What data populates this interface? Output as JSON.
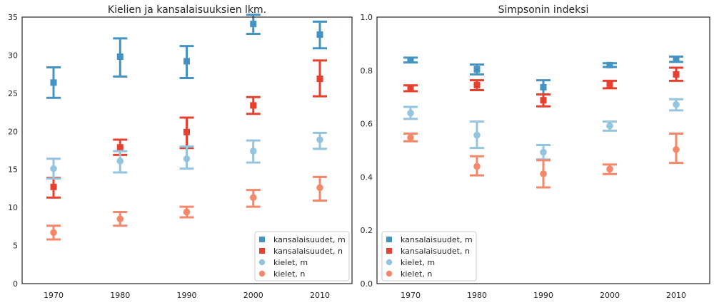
{
  "chart_data": [
    {
      "type": "scatter",
      "title": "Kielien ja kansalaisuuksien lkm.",
      "xlabel": "",
      "ylabel": "",
      "categories": [
        "1970",
        "1980",
        "1990",
        "2000",
        "2010"
      ],
      "ylim": [
        0,
        35
      ],
      "yticks": [
        "0",
        "5",
        "10",
        "15",
        "20",
        "25",
        "30",
        "35"
      ],
      "ytick_values": [
        0,
        5,
        10,
        15,
        20,
        25,
        30,
        35
      ],
      "grid": false,
      "legend_position": "bottom-right",
      "series": [
        {
          "name": "kansalaisuudet, m",
          "marker": "square",
          "color": "#4493c3",
          "values": [
            26.4,
            29.8,
            29.2,
            34.1,
            32.7
          ],
          "lower": [
            24.4,
            27.2,
            27.0,
            32.8,
            30.9
          ],
          "upper": [
            28.4,
            32.2,
            31.2,
            35.3,
            34.4
          ]
        },
        {
          "name": "kansalaisuudet, n",
          "marker": "square",
          "color": "#e8402e",
          "values": [
            12.7,
            17.9,
            19.9,
            23.4,
            26.9
          ],
          "lower": [
            11.3,
            16.9,
            17.8,
            22.3,
            24.6
          ],
          "upper": [
            13.9,
            18.9,
            21.8,
            24.5,
            29.3
          ]
        },
        {
          "name": "kielet, m",
          "marker": "circle",
          "color": "#95c4df",
          "values": [
            15.1,
            16.1,
            16.4,
            17.4,
            18.9
          ],
          "lower": [
            13.8,
            14.6,
            15.1,
            15.9,
            17.7
          ],
          "upper": [
            16.4,
            17.4,
            18.0,
            18.8,
            19.8
          ]
        },
        {
          "name": "kielet, n",
          "marker": "circle",
          "color": "#f5876a",
          "values": [
            6.7,
            8.5,
            9.4,
            11.3,
            12.6
          ],
          "lower": [
            5.8,
            7.6,
            8.7,
            10.1,
            10.9
          ],
          "upper": [
            7.6,
            9.4,
            10.1,
            12.3,
            14.0
          ]
        }
      ]
    },
    {
      "type": "scatter",
      "title": "Simpsonin indeksi",
      "xlabel": "",
      "ylabel": "",
      "categories": [
        "1970",
        "1980",
        "1990",
        "2000",
        "2010"
      ],
      "ylim": [
        0,
        1.0
      ],
      "yticks": [
        "0.0",
        "0.2",
        "0.4",
        "0.6",
        "0.8",
        "1.0"
      ],
      "ytick_values": [
        0,
        0.2,
        0.4,
        0.6,
        0.8,
        1.0
      ],
      "grid": false,
      "legend_position": "bottom-left",
      "series": [
        {
          "name": "kansalaisuudet, m",
          "marker": "square",
          "color": "#4493c3",
          "values": [
            0.838,
            0.804,
            0.737,
            0.82,
            0.842
          ],
          "lower": [
            0.83,
            0.785,
            0.71,
            0.813,
            0.832
          ],
          "upper": [
            0.848,
            0.822,
            0.763,
            0.827,
            0.852
          ]
        },
        {
          "name": "kansalaisuudet, n",
          "marker": "square",
          "color": "#e8402e",
          "values": [
            0.733,
            0.745,
            0.688,
            0.748,
            0.785
          ],
          "lower": [
            0.722,
            0.726,
            0.665,
            0.733,
            0.761
          ],
          "upper": [
            0.744,
            0.763,
            0.71,
            0.761,
            0.81
          ]
        },
        {
          "name": "kielet, m",
          "marker": "circle",
          "color": "#95c4df",
          "values": [
            0.64,
            0.557,
            0.493,
            0.592,
            0.672
          ],
          "lower": [
            0.618,
            0.509,
            0.466,
            0.574,
            0.65
          ],
          "upper": [
            0.663,
            0.608,
            0.52,
            0.608,
            0.692
          ]
        },
        {
          "name": "kielet, n",
          "marker": "circle",
          "color": "#f5876a",
          "values": [
            0.548,
            0.44,
            0.412,
            0.43,
            0.503
          ],
          "lower": [
            0.534,
            0.406,
            0.361,
            0.411,
            0.453
          ],
          "upper": [
            0.563,
            0.478,
            0.463,
            0.447,
            0.563
          ]
        }
      ]
    }
  ]
}
